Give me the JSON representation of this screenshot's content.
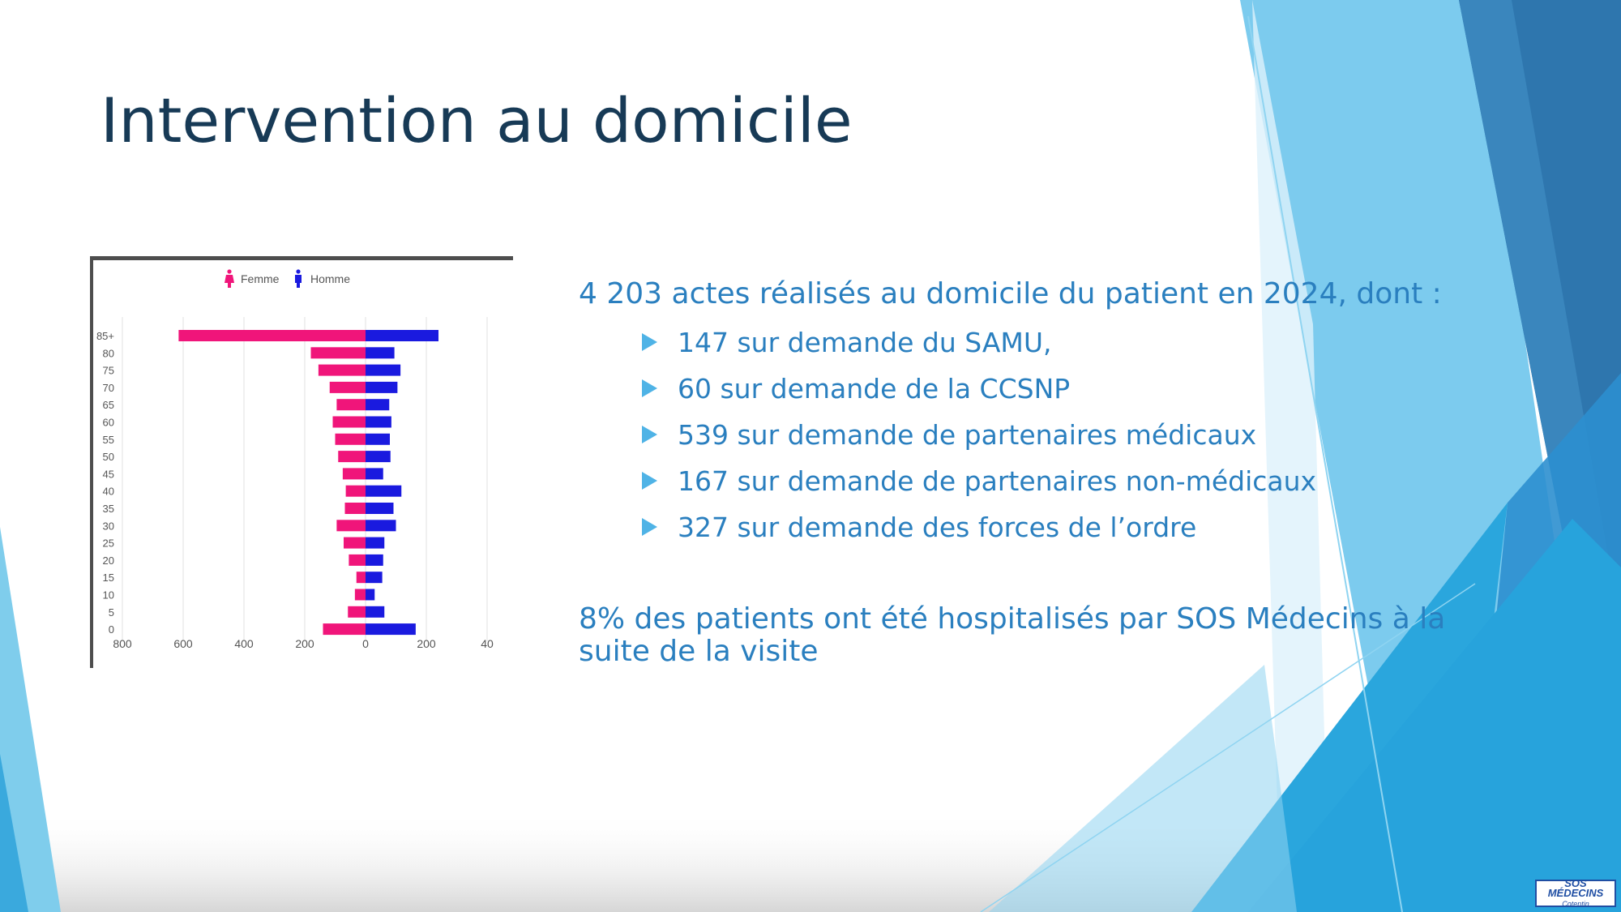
{
  "slide": {
    "title": "Intervention au domicile",
    "lead": "4 203 actes réalisés au domicile du patient en 2024, dont :",
    "items": [
      "147 sur demande du SAMU,",
      "60 sur demande de la CCSNP",
      "539 sur demande de partenaires médicaux",
      "167 sur demande de partenaires non-médicaux",
      "327 sur demande des forces de l’ordre"
    ],
    "footer": "8% des patients ont été hospitalisés par SOS Médecins à la suite de la visite",
    "logo_text": "SOS MÉDECINS",
    "logo_sub": "Cotentin"
  },
  "colors": {
    "title": "#173a56",
    "text": "#2a7fbf",
    "bullet": "#4fb3e6",
    "femme": "#f0157a",
    "homme": "#1a1adf"
  },
  "chart_data": {
    "type": "bar",
    "orientation": "horizontal-population-pyramid",
    "legend": [
      "Femme",
      "Homme"
    ],
    "legend_position": "top-center",
    "categories": [
      "85+",
      "80",
      "75",
      "70",
      "65",
      "60",
      "55",
      "50",
      "45",
      "40",
      "35",
      "30",
      "25",
      "20",
      "15",
      "10",
      "5",
      "0"
    ],
    "series": [
      {
        "name": "Femme",
        "values": [
          615,
          180,
          155,
          118,
          95,
          108,
          100,
          90,
          75,
          65,
          68,
          95,
          72,
          55,
          30,
          35,
          58,
          140
        ]
      },
      {
        "name": "Homme",
        "values": [
          240,
          95,
          115,
          105,
          78,
          85,
          80,
          82,
          58,
          118,
          92,
          100,
          62,
          58,
          55,
          30,
          62,
          165
        ]
      }
    ],
    "x_ticks": [
      "800",
      "600",
      "400",
      "200",
      "0",
      "200",
      "40"
    ],
    "xlim": [
      -800,
      400
    ],
    "grid": true
  }
}
